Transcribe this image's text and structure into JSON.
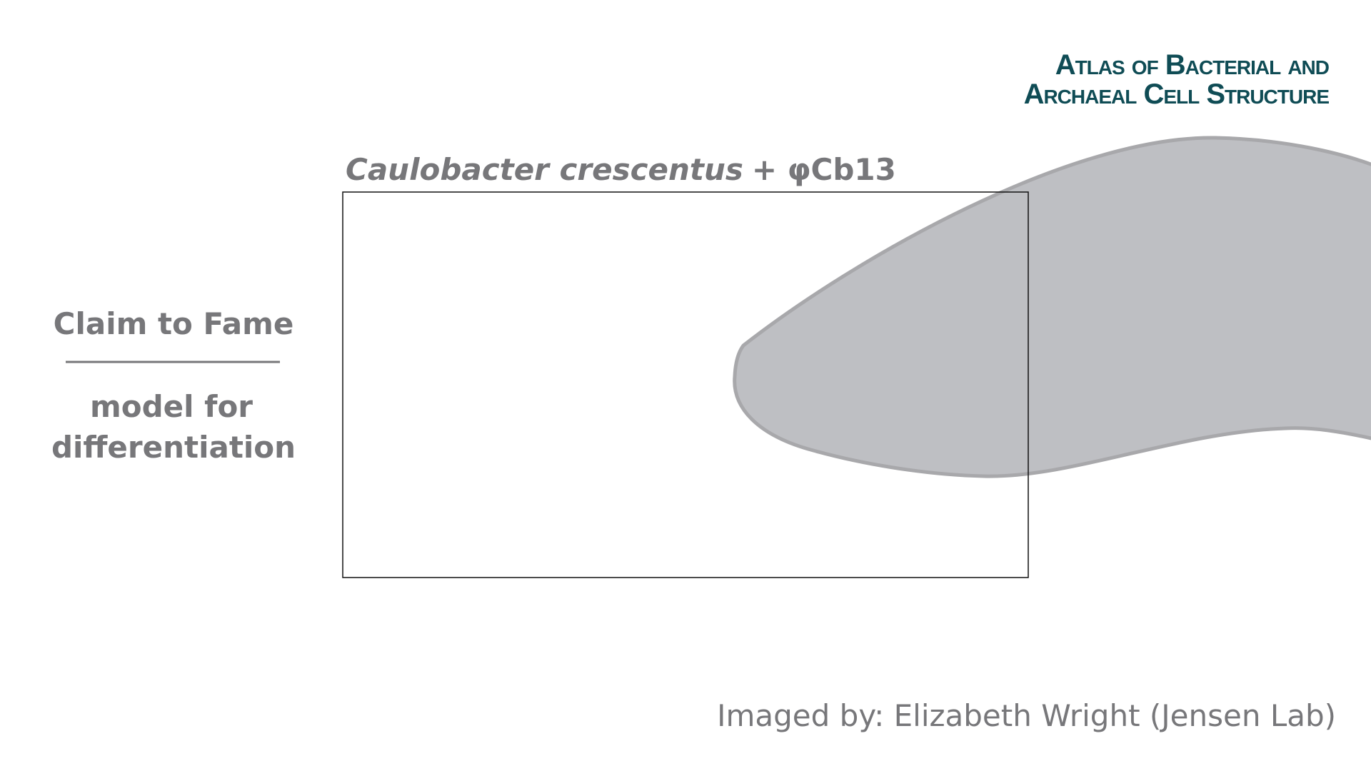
{
  "logo": {
    "line1": "Atlas of Bacterial and",
    "line2": "Archaeal Cell Structure"
  },
  "title": {
    "species": "Caulobacter crescentus",
    "suffix": "+ φCb13"
  },
  "sidebar": {
    "heading": "Claim to Fame",
    "text": [
      "model for",
      "differentiation"
    ]
  },
  "credit": "Imaged by: Elizabeth Wright (Jensen Lab)"
}
